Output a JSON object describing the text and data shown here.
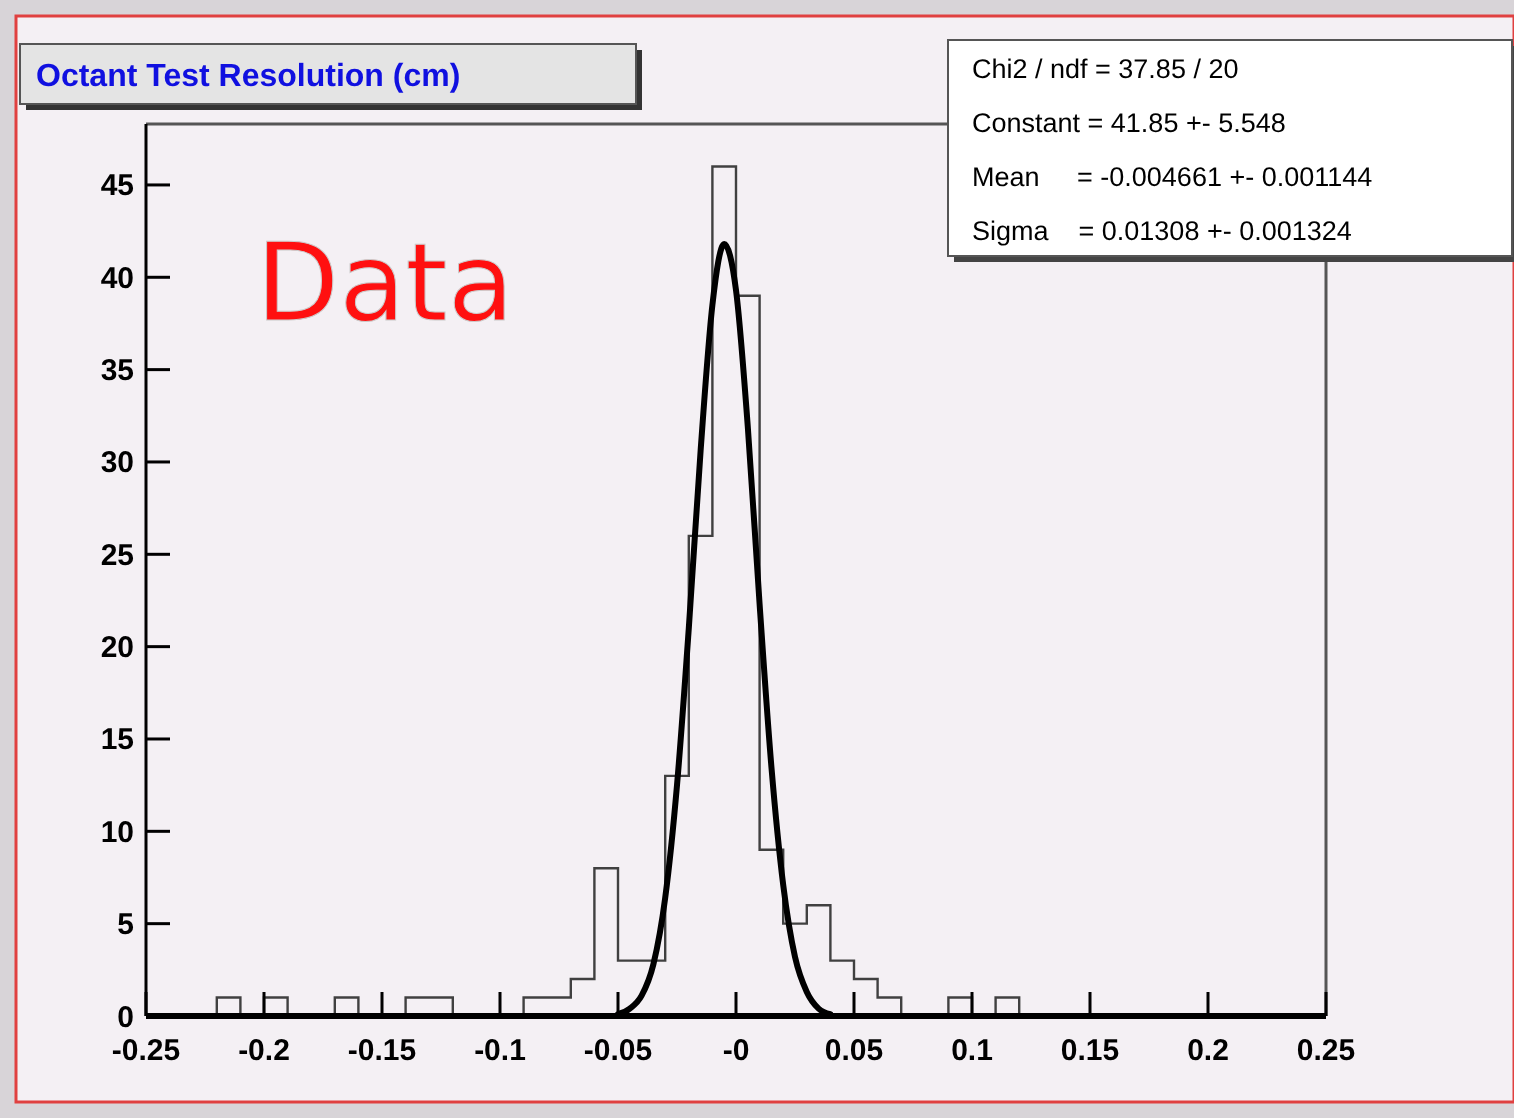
{
  "chart_data": {
    "type": "histogram",
    "title": "Octant Test Resolution (cm)",
    "xlim": [
      -0.25,
      0.25
    ],
    "ylim": [
      0,
      48.3
    ],
    "xticks": [
      -0.25,
      -0.2,
      -0.15,
      -0.1,
      -0.05,
      {
        "value": 0,
        "label": "-0"
      },
      0.05,
      0.1,
      0.15,
      0.2,
      0.25
    ],
    "yticks": [
      0,
      5,
      10,
      15,
      20,
      25,
      30,
      35,
      40,
      45
    ],
    "series": [
      {
        "color": "#404040",
        "bins": [
          -0.25,
          -0.24,
          -0.23,
          -0.22,
          -0.21,
          -0.2,
          -0.19,
          -0.18,
          -0.17,
          -0.16,
          -0.15,
          -0.14,
          -0.13,
          -0.12,
          -0.11,
          -0.1,
          -0.09,
          -0.08,
          -0.07,
          -0.06,
          -0.05,
          -0.04,
          -0.03,
          -0.02,
          -0.01,
          0,
          0.01,
          0.02,
          0.03,
          0.04,
          0.05,
          0.06,
          0.07,
          0.08,
          0.09,
          0.1,
          0.11,
          0.12,
          0.13,
          0.14,
          0.15,
          0.16,
          0.17,
          0.18,
          0.19,
          0.2,
          0.21,
          0.22,
          0.23,
          0.24,
          0.25
        ],
        "values": [
          0,
          0,
          0,
          1,
          0,
          1,
          0,
          0,
          1,
          0,
          0,
          1,
          1,
          0,
          0,
          0,
          1,
          1,
          2,
          8,
          3,
          3,
          13,
          26,
          46,
          39,
          9,
          5,
          6,
          3,
          2,
          1,
          0,
          0,
          1,
          0,
          1,
          0,
          0,
          0,
          0,
          0,
          0,
          0,
          0,
          0,
          0,
          0,
          0,
          0
        ]
      },
      {
        "type": "line",
        "color": "#000000",
        "x": [
          -0.05,
          -0.045,
          -0.04,
          -0.035,
          -0.03,
          -0.025,
          -0.02,
          -0.015,
          -0.01,
          -0.005,
          0,
          0.005,
          0.01,
          0.015,
          0.02,
          0.025,
          0.03,
          0.035,
          0.04
        ],
        "values": [
          0.1,
          0.4,
          1.1,
          2.8,
          6.4,
          12.5,
          21.0,
          30.6,
          38.5,
          41.8,
          39.3,
          31.9,
          22.3,
          13.5,
          7.1,
          3.2,
          1.3,
          0.4,
          0.1
        ]
      }
    ],
    "annotations": [
      "Data",
      "Chi2 / ndf = 37.85 / 20",
      "Constant = 41.85 +- 5.548",
      "Mean     = -0.004661 +- 0.001144",
      "Sigma    = 0.01308 +- 0.001324"
    ]
  }
}
